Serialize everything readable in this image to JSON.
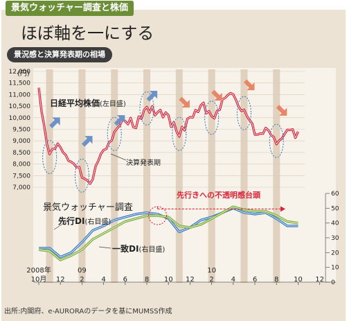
{
  "header": {
    "tag": "景気ウォッチャー調査と株価",
    "headline": "ほぼ軸を一にする"
  },
  "panel": {
    "title": "景況感と決算発表期の相場"
  },
  "labels": {
    "nikkei_name": "日経平均株価",
    "nikkei_axis": "(左目盛)",
    "earnings": "決算発表期",
    "di_title": "景気ウォッチャー調査",
    "leading_name": "先行DI",
    "leading_axis": "(右目盛)",
    "coincident_name": "一致DI",
    "coincident_axis": "(右目盛)",
    "uncertainty": "先行きへの不透明感台頭",
    "left_unit": "(円)",
    "source": "出所:内閣府、e-AURORAのデータを基にMUMSS作成"
  },
  "colors": {
    "nikkei": "#d8162f",
    "leading": "#3d7ec2",
    "coincident": "#7fad3f",
    "tag_bg": "#6b8e37",
    "arrow_blue": "#6d93c6",
    "arrow_orange": "#e6876a"
  },
  "chart_data": [
    {
      "type": "line",
      "name": "日経平均株価",
      "yaxis": "left",
      "ylim": [
        7000,
        12000
      ],
      "yticks": [
        "12,000",
        "11,500",
        "11,000",
        "10,500",
        "10,000",
        "9,500",
        "9,000",
        "8,500",
        "8,000",
        "7,500",
        "7,000"
      ],
      "x": [
        "2008-10",
        "2008-11",
        "2008-12",
        "2009-01",
        "2009-02",
        "2009-03",
        "2009-04",
        "2009-05",
        "2009-06",
        "2009-07",
        "2009-08",
        "2009-09",
        "2009-10",
        "2009-11",
        "2009-12",
        "2010-01",
        "2010-02",
        "2010-03",
        "2010-04",
        "2010-05",
        "2010-06",
        "2010-07",
        "2010-08",
        "2010-09",
        "2010-10"
      ],
      "values": [
        11300,
        8300,
        8900,
        8000,
        7500,
        7300,
        8700,
        9300,
        9900,
        9700,
        10400,
        10300,
        10000,
        9300,
        9900,
        10600,
        10000,
        10600,
        11100,
        10200,
        9400,
        9400,
        9000,
        9400,
        9400
      ]
    },
    {
      "type": "line",
      "yaxis": "right",
      "ylim": [
        0,
        60
      ],
      "yticks": [
        "60",
        "50",
        "40",
        "30",
        "20",
        "10",
        "0"
      ],
      "x": [
        "2008-10",
        "2008-11",
        "2008-12",
        "2009-01",
        "2009-02",
        "2009-03",
        "2009-04",
        "2009-05",
        "2009-06",
        "2009-07",
        "2009-08",
        "2009-09",
        "2009-10",
        "2009-11",
        "2009-12",
        "2010-01",
        "2010-02",
        "2010-03",
        "2010-04",
        "2010-05",
        "2010-06",
        "2010-07",
        "2010-08",
        "2010-09",
        "2010-10"
      ],
      "series": [
        {
          "name": "先行DI",
          "values": [
            23,
            23,
            17,
            20,
            27,
            35,
            38,
            42,
            44,
            46,
            47,
            46,
            43,
            34,
            37,
            42,
            44,
            47,
            50,
            47,
            46,
            47,
            43,
            38,
            38
          ]
        },
        {
          "name": "一致DI",
          "values": [
            22,
            21,
            15,
            18,
            22,
            29,
            33,
            37,
            41,
            43,
            45,
            45,
            44,
            38,
            37,
            39,
            43,
            47,
            51,
            49,
            48,
            48,
            45,
            41,
            40
          ]
        }
      ]
    }
  ],
  "x_axis": {
    "ticks": [
      "2008年\n10月",
      "12",
      "09\n2",
      "4",
      "6",
      "8",
      "10",
      "12",
      "10\n2",
      "4",
      "6",
      "8",
      "10",
      "12"
    ]
  },
  "earnings_periods_months": [
    1,
    4,
    7,
    10,
    13,
    16,
    19,
    22
  ]
}
